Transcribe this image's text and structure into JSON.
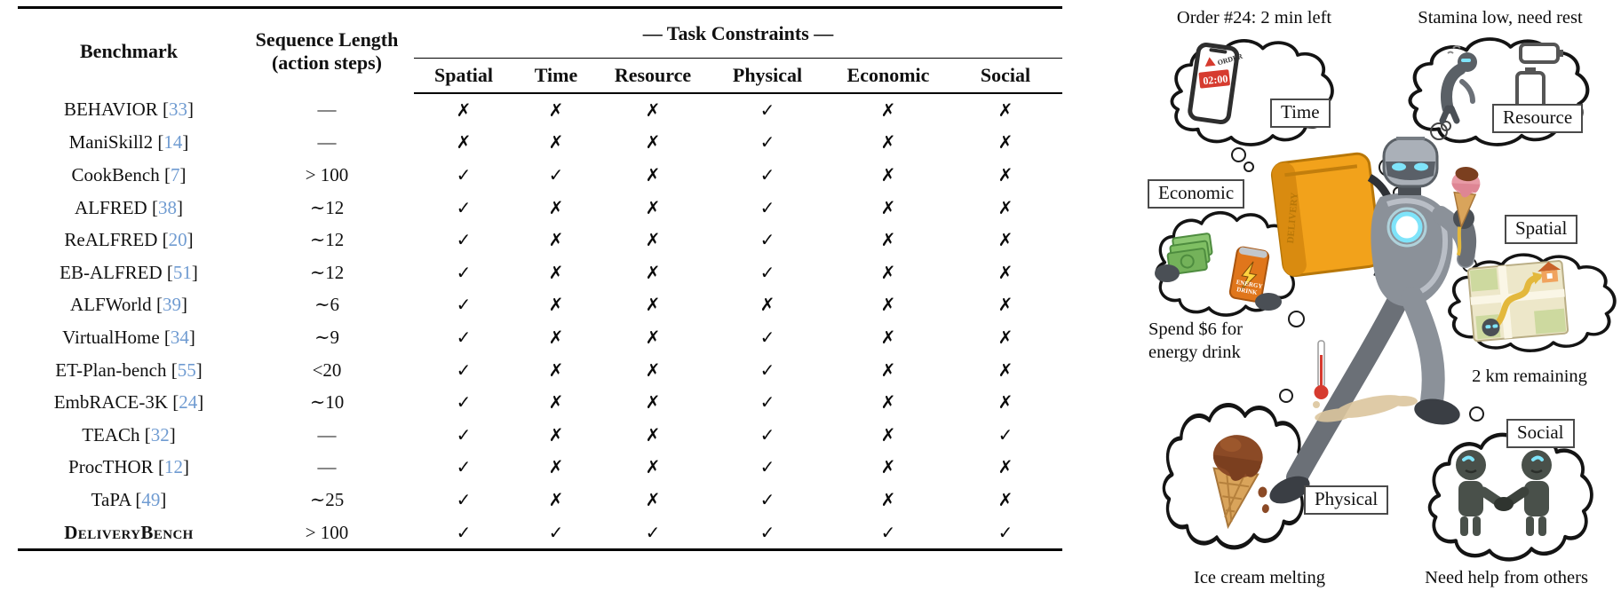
{
  "table": {
    "headers": {
      "benchmark": "Benchmark",
      "seq_line1": "Sequence Length",
      "seq_line2": "(action steps)",
      "group": "— Task Constraints —",
      "constraints": [
        "Spatial",
        "Time",
        "Resource",
        "Physical",
        "Economic",
        "Social"
      ]
    },
    "cite_open": "[",
    "cite_close": "]",
    "rows": [
      {
        "name": "BEHAVIOR",
        "cite": "33",
        "seq": "—",
        "bold": false,
        "marks": [
          "✗",
          "✗",
          "✗",
          "✓",
          "✗",
          "✗"
        ]
      },
      {
        "name": "ManiSkill2",
        "cite": "14",
        "seq": "—",
        "bold": false,
        "marks": [
          "✗",
          "✗",
          "✗",
          "✓",
          "✗",
          "✗"
        ]
      },
      {
        "name": "CookBench",
        "cite": "7",
        "seq": "> 100",
        "bold": false,
        "marks": [
          "✓",
          "✓",
          "✗",
          "✓",
          "✗",
          "✗"
        ]
      },
      {
        "name": "ALFRED",
        "cite": "38",
        "seq": "∼12",
        "bold": false,
        "marks": [
          "✓",
          "✗",
          "✗",
          "✓",
          "✗",
          "✗"
        ]
      },
      {
        "name": "ReALFRED",
        "cite": "20",
        "seq": "∼12",
        "bold": false,
        "marks": [
          "✓",
          "✗",
          "✗",
          "✓",
          "✗",
          "✗"
        ]
      },
      {
        "name": "EB-ALFRED",
        "cite": "51",
        "seq": "∼12",
        "bold": false,
        "marks": [
          "✓",
          "✗",
          "✗",
          "✓",
          "✗",
          "✗"
        ]
      },
      {
        "name": "ALFWorld",
        "cite": "39",
        "seq": "∼6",
        "bold": false,
        "marks": [
          "✓",
          "✗",
          "✗",
          "✗",
          "✗",
          "✗"
        ]
      },
      {
        "name": "VirtualHome",
        "cite": "34",
        "seq": "∼9",
        "bold": false,
        "marks": [
          "✓",
          "✗",
          "✗",
          "✓",
          "✗",
          "✗"
        ]
      },
      {
        "name": "ET-Plan-bench",
        "cite": "55",
        "seq": "<20",
        "bold": false,
        "marks": [
          "✓",
          "✗",
          "✗",
          "✓",
          "✗",
          "✗"
        ]
      },
      {
        "name": "EmbRACE-3K",
        "cite": "24",
        "seq": "∼10",
        "bold": false,
        "marks": [
          "✓",
          "✗",
          "✗",
          "✓",
          "✗",
          "✗"
        ]
      },
      {
        "name": "TEACh",
        "cite": "32",
        "seq": "—",
        "bold": false,
        "marks": [
          "✓",
          "✗",
          "✗",
          "✓",
          "✗",
          "✓"
        ]
      },
      {
        "name": "ProcTHOR",
        "cite": "12",
        "seq": "—",
        "bold": false,
        "marks": [
          "✓",
          "✗",
          "✗",
          "✓",
          "✗",
          "✗"
        ]
      },
      {
        "name": "TaPA",
        "cite": "49",
        "seq": "∼25",
        "bold": false,
        "marks": [
          "✓",
          "✗",
          "✗",
          "✓",
          "✗",
          "✗"
        ]
      },
      {
        "name": "DeliveryBench",
        "cite": "",
        "seq": "> 100",
        "bold": true,
        "marks": [
          "✓",
          "✓",
          "✓",
          "✓",
          "✓",
          "✓"
        ]
      }
    ]
  },
  "illustration": {
    "captions": {
      "order": "Order #24: 2 min left",
      "stamina": "Stamina low, need rest",
      "spend_line1": "Spend $6 for",
      "spend_line2": "energy drink",
      "distance": "2 km remaining",
      "melting": "Ice cream melting",
      "help": "Need help from others"
    },
    "labels": {
      "time": "Time",
      "resource": "Resource",
      "economic": "Economic",
      "spatial": "Spatial",
      "physical": "Physical",
      "social": "Social"
    },
    "icons": {
      "phone_alert": "ORDER",
      "phone_time": "02:00",
      "can_line1": "ENERGY",
      "can_line2": "DRINK",
      "backpack": "DELIVERY"
    }
  },
  "colors": {
    "citation_blue": "#6F9BD1",
    "backpack_orange": "#F2A21B",
    "alert_red": "#D63B2F",
    "glow_cyan": "#7FE4FA",
    "money_green": "#7FBF63",
    "can_orange": "#E0761B"
  }
}
